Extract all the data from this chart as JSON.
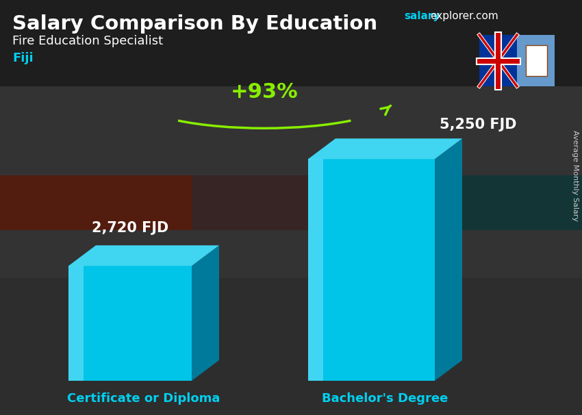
{
  "title_main": "Salary Comparison By Education",
  "title_sub": "Fire Education Specialist",
  "title_country": "Fiji",
  "watermark_salary": "salary",
  "watermark_rest": "explorer.com",
  "ylabel_side": "Average Monthly Salary",
  "categories": [
    "Certificate or Diploma",
    "Bachelor's Degree"
  ],
  "values": [
    2720,
    5250
  ],
  "labels": [
    "2,720 FJD",
    "5,250 FJD"
  ],
  "pct_change": "+93%",
  "bar_color_front": "#00C5E8",
  "bar_color_side": "#007A9A",
  "bar_color_top": "#40D5F0",
  "bar_highlight": "#80E8FF",
  "bg_top": "#2a2a2a",
  "bg_mid": "#404040",
  "bg_bottom": "#1a1a1a",
  "text_white": "#FFFFFF",
  "text_cyan": "#00CFEF",
  "text_green": "#88EE00",
  "arrow_green": "#88EE00",
  "watermark_bold_color": "#00CFEF",
  "watermark_normal_color": "#FFFFFF",
  "side_label_color": "#CCCCCC",
  "figsize": [
    8.5,
    6.06
  ],
  "dpi": 100
}
